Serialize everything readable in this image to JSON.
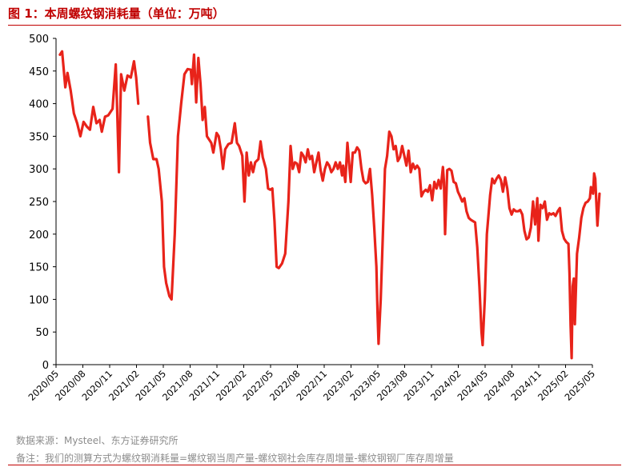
{
  "title": "图 1：本周螺纹钢消耗量（单位：万吨）",
  "footer": {
    "source": "数据来源：Mysteel、东方证券研究所",
    "note": "备注：我们的测算方式为螺纹钢消耗量=螺纹钢当周产量-螺纹钢社会库存周增量-螺纹钢钢厂库存周增量"
  },
  "colors": {
    "line": "#e8231a",
    "accent": "#c00000",
    "note": "#8c8c8c"
  },
  "chart_data": {
    "type": "line",
    "title": "",
    "xlabel": "",
    "ylabel": "",
    "ylim": [
      0,
      500
    ],
    "yticks": [
      0,
      50,
      100,
      150,
      200,
      250,
      300,
      350,
      400,
      450,
      500
    ],
    "xlim": [
      "2020-05",
      "2025-05"
    ],
    "xticks": [
      "2020/05",
      "2020/08",
      "2020/11",
      "2021/02",
      "2021/05",
      "2021/08",
      "2021/11",
      "2022/02",
      "2022/05",
      "2022/08",
      "2022/11",
      "2023/02",
      "2023/05",
      "2023/08",
      "2023/11",
      "2024/02",
      "2024/05",
      "2024/08",
      "2024/11",
      "2025/02",
      "2025/05"
    ],
    "grid": false,
    "legend": "none",
    "series": [
      {
        "name": "",
        "segments": [
          [
            [
              2020.37,
              475
            ],
            [
              2020.39,
              480
            ],
            [
              2020.42,
              425
            ],
            [
              2020.44,
              447
            ],
            [
              2020.47,
              420
            ],
            [
              2020.5,
              385
            ],
            [
              2020.53,
              370
            ],
            [
              2020.56,
              350
            ],
            [
              2020.59,
              372
            ],
            [
              2020.62,
              365
            ],
            [
              2020.65,
              360
            ],
            [
              2020.68,
              395
            ],
            [
              2020.71,
              370
            ],
            [
              2020.74,
              375
            ],
            [
              2020.76,
              357
            ],
            [
              2020.79,
              380
            ],
            [
              2020.82,
              382
            ],
            [
              2020.86,
              392
            ],
            [
              2020.89,
              460
            ],
            [
              2020.9,
              410
            ],
            [
              2020.92,
              295
            ],
            [
              2020.94,
              445
            ],
            [
              2020.97,
              420
            ],
            [
              2021.0,
              443
            ],
            [
              2021.03,
              440
            ],
            [
              2021.06,
              465
            ],
            [
              2021.08,
              440
            ],
            [
              2021.1,
              400
            ]
          ],
          [
            [
              2021.19,
              380
            ],
            [
              2021.21,
              340
            ],
            [
              2021.24,
              315
            ],
            [
              2021.27,
              315
            ],
            [
              2021.29,
              300
            ],
            [
              2021.32,
              250
            ],
            [
              2021.34,
              150
            ],
            [
              2021.36,
              125
            ],
            [
              2021.39,
              105
            ],
            [
              2021.41,
              100
            ],
            [
              2021.44,
              200
            ],
            [
              2021.47,
              350
            ],
            [
              2021.5,
              400
            ],
            [
              2021.53,
              445
            ],
            [
              2021.56,
              453
            ],
            [
              2021.59,
              452
            ],
            [
              2021.6,
              430
            ],
            [
              2021.62,
              475
            ],
            [
              2021.64,
              402
            ],
            [
              2021.66,
              470
            ],
            [
              2021.68,
              430
            ],
            [
              2021.7,
              375
            ],
            [
              2021.72,
              395
            ],
            [
              2021.74,
              350
            ],
            [
              2021.76,
              345
            ],
            [
              2021.78,
              340
            ],
            [
              2021.8,
              325
            ],
            [
              2021.83,
              355
            ],
            [
              2021.85,
              350
            ],
            [
              2021.87,
              330
            ],
            [
              2021.89,
              300
            ],
            [
              2021.91,
              330
            ],
            [
              2021.94,
              338
            ],
            [
              2021.97,
              340
            ],
            [
              2022.0,
              370
            ],
            [
              2022.02,
              340
            ],
            [
              2022.04,
              335
            ],
            [
              2022.07,
              320
            ],
            [
              2022.09,
              250
            ],
            [
              2022.11,
              325
            ],
            [
              2022.13,
              290
            ],
            [
              2022.15,
              310
            ],
            [
              2022.17,
              295
            ],
            [
              2022.19,
              310
            ],
            [
              2022.22,
              315
            ],
            [
              2022.24,
              342
            ],
            [
              2022.26,
              318
            ],
            [
              2022.29,
              300
            ],
            [
              2022.31,
              270
            ],
            [
              2022.33,
              268
            ],
            [
              2022.35,
              270
            ],
            [
              2022.37,
              220
            ],
            [
              2022.39,
              150
            ],
            [
              2022.41,
              148
            ],
            [
              2022.44,
              155
            ],
            [
              2022.47,
              170
            ],
            [
              2022.5,
              250
            ],
            [
              2022.52,
              335
            ],
            [
              2022.54,
              300
            ],
            [
              2022.56,
              310
            ],
            [
              2022.58,
              308
            ],
            [
              2022.6,
              295
            ],
            [
              2022.62,
              325
            ],
            [
              2022.64,
              320
            ],
            [
              2022.66,
              310
            ],
            [
              2022.68,
              330
            ],
            [
              2022.7,
              315
            ],
            [
              2022.72,
              320
            ],
            [
              2022.74,
              295
            ],
            [
              2022.76,
              310
            ],
            [
              2022.78,
              325
            ],
            [
              2022.8,
              298
            ],
            [
              2022.82,
              282
            ],
            [
              2022.84,
              300
            ],
            [
              2022.86,
              310
            ],
            [
              2022.88,
              305
            ],
            [
              2022.9,
              295
            ],
            [
              2022.92,
              300
            ],
            [
              2022.94,
              310
            ],
            [
              2022.96,
              300
            ],
            [
              2022.98,
              310
            ],
            [
              2023.0,
              290
            ],
            [
              2023.01,
              305
            ],
            [
              2023.03,
              280
            ],
            [
              2023.05,
              340
            ],
            [
              2023.07,
              300
            ],
            [
              2023.08,
              280
            ],
            [
              2023.1,
              325
            ],
            [
              2023.12,
              325
            ],
            [
              2023.14,
              333
            ],
            [
              2023.16,
              328
            ],
            [
              2023.18,
              300
            ],
            [
              2023.2,
              282
            ],
            [
              2023.22,
              278
            ],
            [
              2023.24,
              280
            ],
            [
              2023.26,
              300
            ],
            [
              2023.28,
              260
            ],
            [
              2023.3,
              210
            ],
            [
              2023.32,
              150
            ],
            [
              2023.33,
              80
            ],
            [
              2023.34,
              32
            ],
            [
              2023.36,
              100
            ],
            [
              2023.38,
              200
            ],
            [
              2023.4,
              300
            ],
            [
              2023.42,
              320
            ],
            [
              2023.44,
              357
            ],
            [
              2023.46,
              350
            ],
            [
              2023.48,
              330
            ],
            [
              2023.5,
              335
            ],
            [
              2023.52,
              312
            ],
            [
              2023.54,
              318
            ],
            [
              2023.56,
              335
            ],
            [
              2023.58,
              320
            ],
            [
              2023.6,
              305
            ],
            [
              2023.62,
              328
            ],
            [
              2023.64,
              295
            ],
            [
              2023.66,
              308
            ],
            [
              2023.68,
              300
            ],
            [
              2023.7,
              305
            ],
            [
              2023.72,
              300
            ],
            [
              2023.74,
              258
            ],
            [
              2023.76,
              265
            ],
            [
              2023.78,
              268
            ],
            [
              2023.8,
              265
            ],
            [
              2023.82,
              275
            ],
            [
              2023.84,
              252
            ],
            [
              2023.86,
              280
            ],
            [
              2023.88,
              270
            ],
            [
              2023.9,
              283
            ],
            [
              2023.92,
              270
            ],
            [
              2023.94,
              303
            ],
            [
              2023.95,
              280
            ],
            [
              2023.96,
              200
            ],
            [
              2023.98,
              298
            ],
            [
              2024.0,
              300
            ],
            [
              2024.02,
              297
            ],
            [
              2024.04,
              280
            ],
            [
              2024.06,
              278
            ],
            [
              2024.08,
              265
            ],
            [
              2024.1,
              258
            ],
            [
              2024.12,
              250
            ],
            [
              2024.14,
              255
            ],
            [
              2024.16,
              235
            ],
            [
              2024.18,
              225
            ],
            [
              2024.2,
              222
            ],
            [
              2024.22,
              220
            ],
            [
              2024.24,
              218
            ],
            [
              2024.26,
              180
            ],
            [
              2024.28,
              120
            ],
            [
              2024.3,
              50
            ],
            [
              2024.31,
              30
            ],
            [
              2024.33,
              100
            ],
            [
              2024.35,
              200
            ],
            [
              2024.38,
              260
            ],
            [
              2024.4,
              285
            ],
            [
              2024.42,
              278
            ],
            [
              2024.44,
              285
            ],
            [
              2024.46,
              290
            ],
            [
              2024.48,
              283
            ],
            [
              2024.5,
              265
            ],
            [
              2024.52,
              287
            ],
            [
              2024.54,
              270
            ],
            [
              2024.56,
              240
            ],
            [
              2024.58,
              230
            ],
            [
              2024.6,
              238
            ],
            [
              2024.62,
              235
            ],
            [
              2024.64,
              235
            ],
            [
              2024.66,
              237
            ],
            [
              2024.68,
              230
            ],
            [
              2024.7,
              205
            ],
            [
              2024.72,
              192
            ],
            [
              2024.74,
              195
            ],
            [
              2024.76,
              210
            ],
            [
              2024.78,
              250
            ],
            [
              2024.8,
              215
            ],
            [
              2024.82,
              255
            ],
            [
              2024.83,
              190
            ],
            [
              2024.85,
              245
            ],
            [
              2024.87,
              240
            ],
            [
              2024.89,
              250
            ],
            [
              2024.91,
              222
            ],
            [
              2024.93,
              232
            ],
            [
              2024.95,
              230
            ],
            [
              2024.97,
              232
            ],
            [
              2024.99,
              228
            ],
            [
              2025.01,
              235
            ],
            [
              2025.03,
              240
            ],
            [
              2025.05,
              205
            ],
            [
              2025.07,
              193
            ],
            [
              2025.09,
              188
            ],
            [
              2025.11,
              185
            ],
            [
              2025.12,
              140
            ],
            [
              2025.13,
              60
            ],
            [
              2025.14,
              10
            ],
            [
              2025.15,
              120
            ],
            [
              2025.16,
              132
            ],
            [
              2025.17,
              62
            ],
            [
              2025.19,
              170
            ],
            [
              2025.21,
              195
            ],
            [
              2025.23,
              225
            ],
            [
              2025.25,
              240
            ],
            [
              2025.27,
              248
            ],
            [
              2025.29,
              250
            ],
            [
              2025.31,
              255
            ],
            [
              2025.32,
              272
            ],
            [
              2025.34,
              262
            ],
            [
              2025.35,
              293
            ],
            [
              2025.36,
              285
            ],
            [
              2025.37,
              250
            ],
            [
              2025.38,
              213
            ],
            [
              2025.4,
              262
            ]
          ]
        ]
      }
    ]
  }
}
